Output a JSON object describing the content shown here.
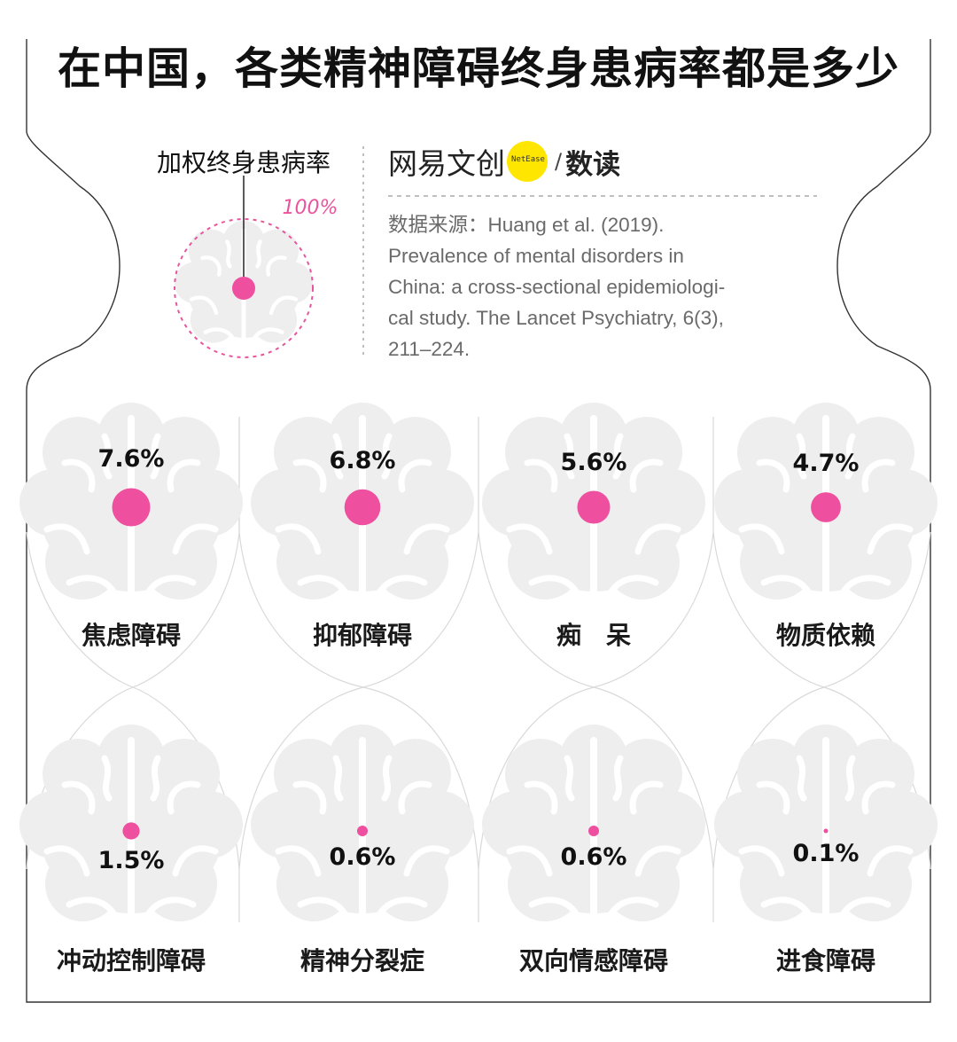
{
  "title": "在中国，各类精神障碍终身患病率都是多少",
  "legend": {
    "label": "加权终身患病率",
    "reference": "100%"
  },
  "brand": {
    "name": "网易文创",
    "badge": "NetEase",
    "slash": "/",
    "sub": "数读"
  },
  "source": [
    "数据来源：Huang et al. (2019).",
    "Prevalence of mental disorders in",
    "China: a cross-sectional epidemiologi-",
    "cal study. The Lancet Psychiatry, 6(3),",
    "211–224."
  ],
  "colors": {
    "dot": "#ee4f9f",
    "brain": "#eeeeee",
    "reference_ring": "#e8559d"
  },
  "chart_data": {
    "type": "bubble",
    "unit": "%",
    "reference_value": 100,
    "categories": [
      "焦虑障碍",
      "抑郁障碍",
      "痴　呆",
      "物质依赖",
      "冲动控制障碍",
      "精神分裂症",
      "双向情感障碍",
      "进食障碍"
    ],
    "values": [
      7.6,
      6.8,
      5.6,
      4.7,
      1.5,
      0.6,
      0.6,
      0.1
    ],
    "value_labels": [
      "7.6%",
      "6.8%",
      "5.6%",
      "4.7%",
      "1.5%",
      "0.6%",
      "0.6%",
      "0.1%"
    ]
  }
}
